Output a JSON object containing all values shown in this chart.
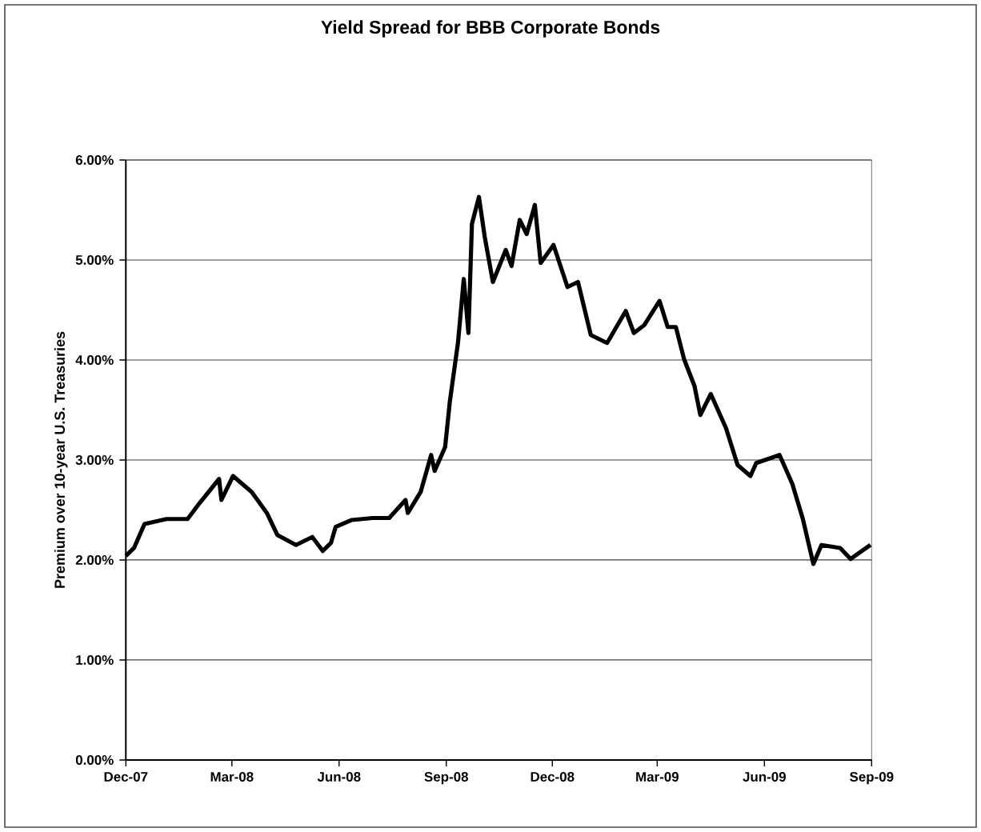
{
  "chart_data": {
    "type": "line",
    "title": "Yield Spread for BBB Corporate Bonds",
    "ylabel": "Premium over 10-year U.S. Treasuries",
    "x": [
      "2007-12-01",
      "2007-12-08",
      "2007-12-17",
      "2008-01-05",
      "2008-01-23",
      "2008-02-01",
      "2008-02-19",
      "2008-02-21",
      "2008-03-02",
      "2008-03-18",
      "2008-03-31",
      "2008-04-09",
      "2008-04-25",
      "2008-05-09",
      "2008-05-18",
      "2008-05-25",
      "2008-05-29",
      "2008-06-12",
      "2008-06-30",
      "2008-07-14",
      "2008-07-28",
      "2008-07-30",
      "2008-08-10",
      "2008-08-19",
      "2008-08-22",
      "2008-08-31",
      "2008-09-04",
      "2008-09-11",
      "2008-09-16",
      "2008-09-20",
      "2008-09-23",
      "2008-09-29",
      "2008-10-04",
      "2008-10-11",
      "2008-10-22",
      "2008-10-27",
      "2008-11-03",
      "2008-11-09",
      "2008-11-16",
      "2008-11-21",
      "2008-12-02",
      "2008-12-14",
      "2008-12-23",
      "2009-01-03",
      "2009-01-17",
      "2009-02-02",
      "2009-02-09",
      "2009-02-18",
      "2009-03-03",
      "2009-03-10",
      "2009-03-17",
      "2009-03-24",
      "2009-04-02",
      "2009-04-07",
      "2009-04-16",
      "2009-04-29",
      "2009-05-09",
      "2009-05-20",
      "2009-05-25",
      "2009-06-14",
      "2009-06-25",
      "2009-07-04",
      "2009-07-13",
      "2009-07-20",
      "2009-08-05",
      "2009-08-14",
      "2009-08-31"
    ],
    "series": [
      {
        "color": "#000000",
        "values": [
          2.04,
          2.12,
          2.36,
          2.41,
          2.41,
          2.55,
          2.81,
          2.6,
          2.84,
          2.68,
          2.47,
          2.25,
          2.15,
          2.23,
          2.09,
          2.17,
          2.33,
          2.4,
          2.42,
          2.42,
          2.6,
          2.47,
          2.68,
          3.05,
          2.89,
          3.13,
          3.58,
          4.17,
          4.81,
          4.27,
          5.36,
          5.63,
          5.23,
          4.78,
          5.1,
          4.94,
          5.4,
          5.26,
          5.55,
          4.97,
          5.15,
          4.73,
          4.78,
          4.25,
          4.17,
          4.49,
          4.27,
          4.35,
          4.59,
          4.33,
          4.33,
          4.01,
          3.74,
          3.45,
          3.66,
          3.32,
          2.95,
          2.84,
          2.97,
          3.05,
          2.76,
          2.41,
          1.96,
          2.15,
          2.12,
          2.01,
          2.15
        ]
      }
    ],
    "xlim": [
      "2007-12-01",
      "2009-09-01"
    ],
    "xticks": [
      {
        "value": "2007-12-01",
        "label": "Dec-07"
      },
      {
        "value": "2008-03-01",
        "label": "Mar-08"
      },
      {
        "value": "2008-06-01",
        "label": "Jun-08"
      },
      {
        "value": "2008-09-01",
        "label": "Sep-08"
      },
      {
        "value": "2008-12-01",
        "label": "Dec-08"
      },
      {
        "value": "2009-03-01",
        "label": "Mar-09"
      },
      {
        "value": "2009-06-01",
        "label": "Jun-09"
      },
      {
        "value": "2009-09-01",
        "label": "Sep-09"
      }
    ],
    "ylim": [
      0,
      6
    ],
    "yticks": [
      {
        "value": 0,
        "label": "0.00%"
      },
      {
        "value": 1,
        "label": "1.00%"
      },
      {
        "value": 2,
        "label": "2.00%"
      },
      {
        "value": 3,
        "label": "3.00%"
      },
      {
        "value": 4,
        "label": "4.00%"
      },
      {
        "value": 5,
        "label": "5.00%"
      },
      {
        "value": 6,
        "label": "6.00%"
      }
    ],
    "grid": "y",
    "marker": "none"
  }
}
